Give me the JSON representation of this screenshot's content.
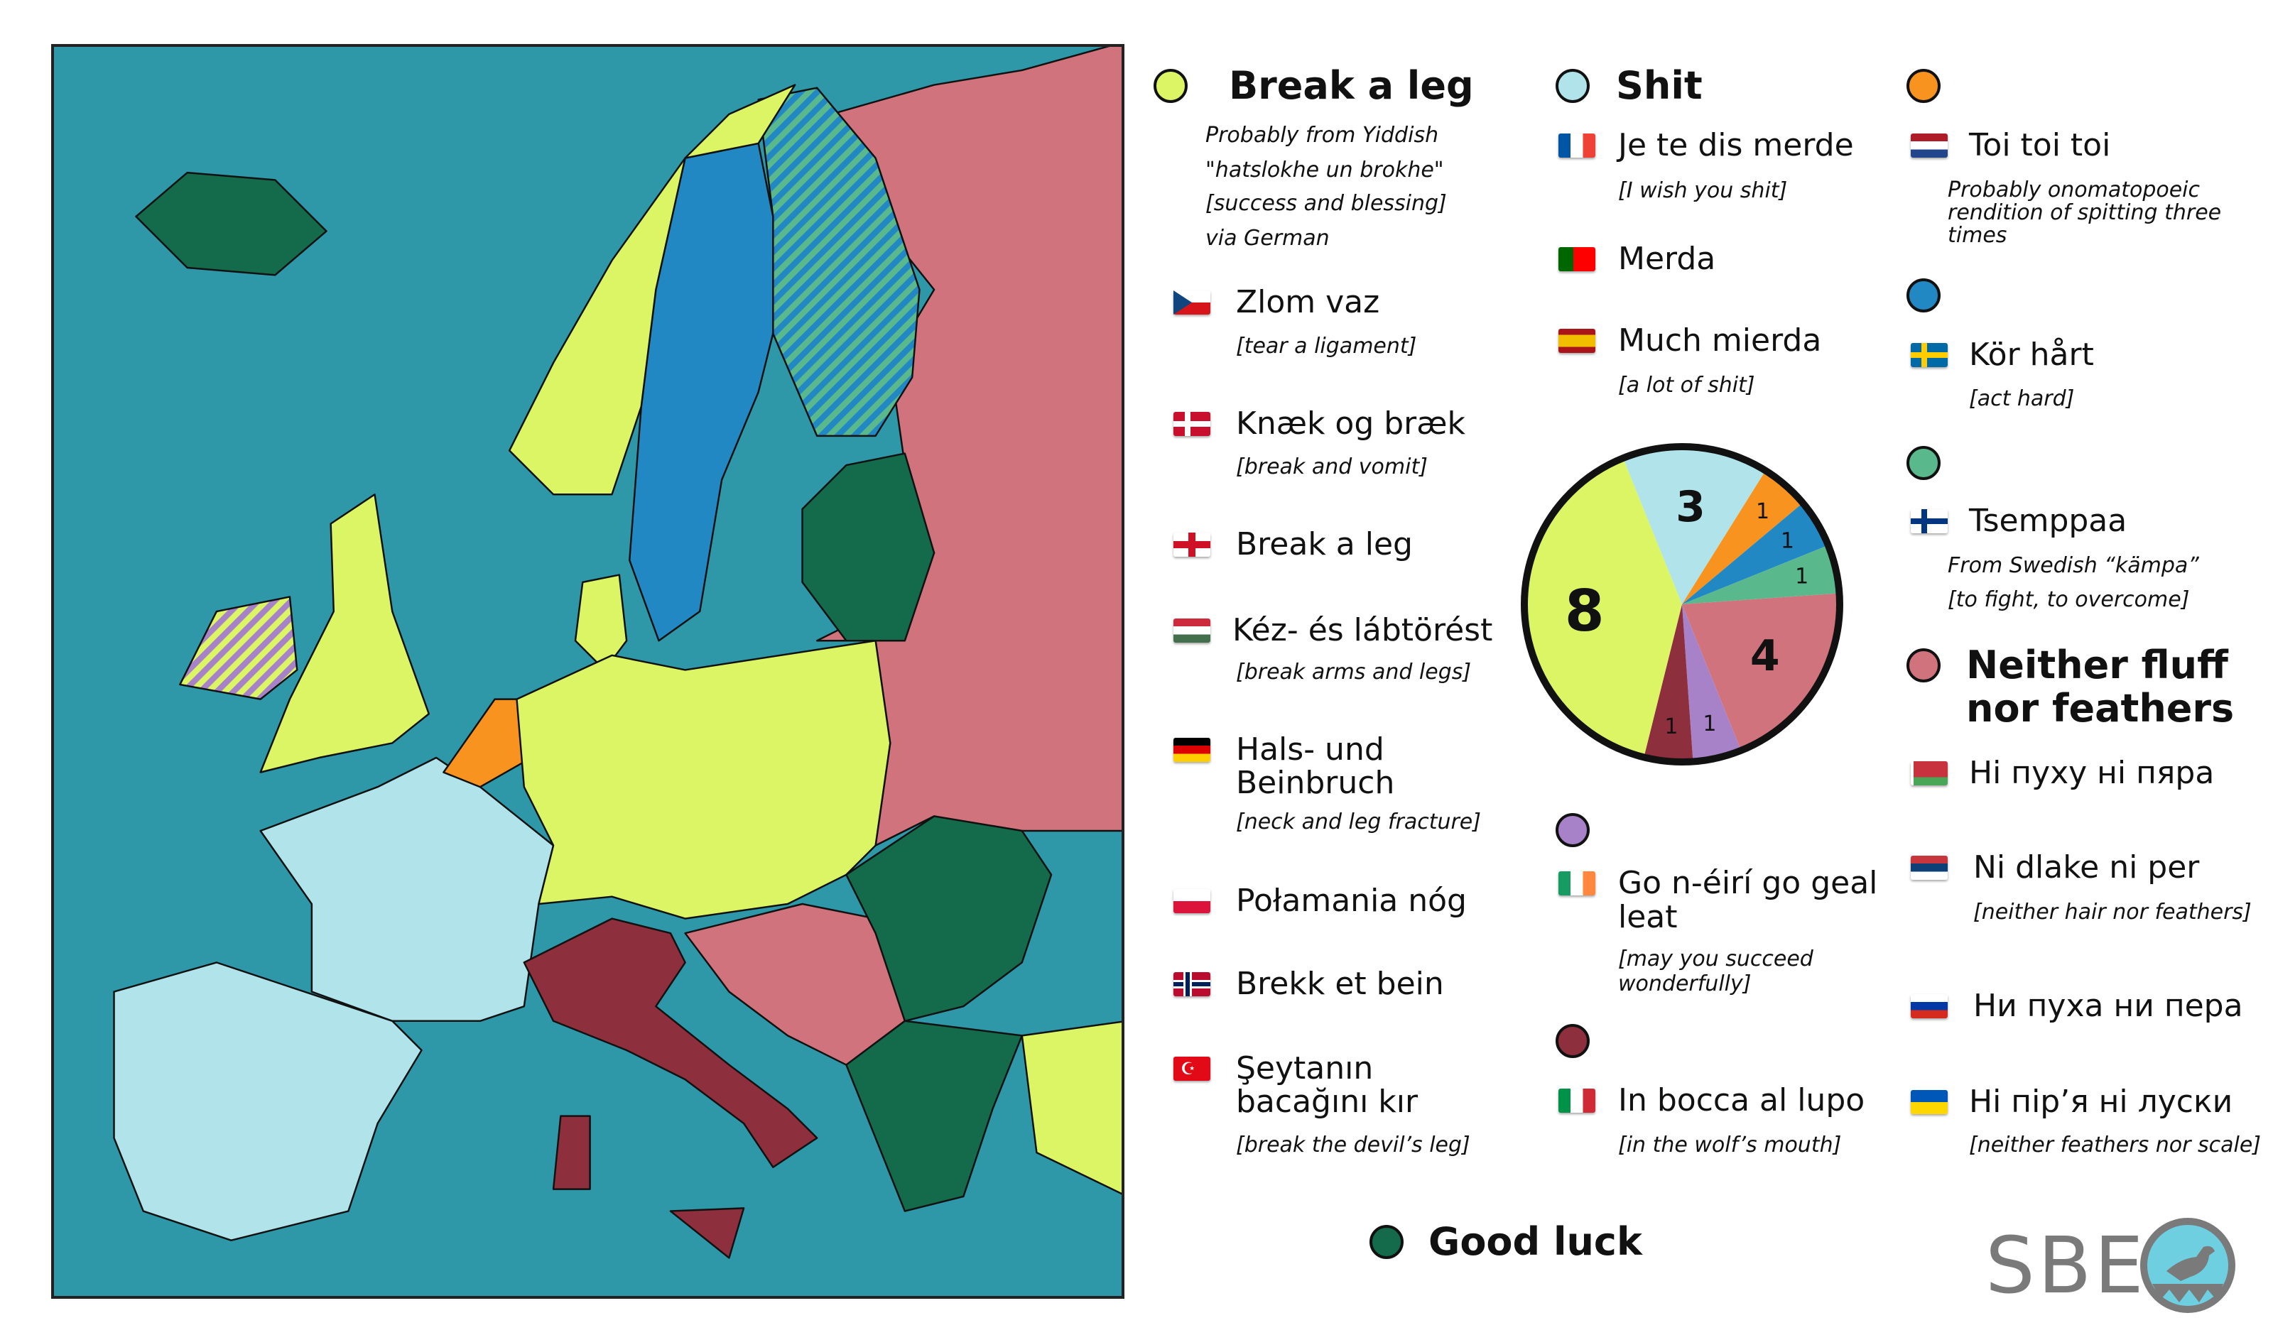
{
  "colors": {
    "sea": "#2f98a8",
    "break_a_leg": "#dcf564",
    "shit": "#b0e4ea",
    "toi_toi_toi": "#f7931e",
    "kor_hart": "#2288c4",
    "tsemppaa": "#5ab98c",
    "neither_fluff": "#d0737c",
    "go_neiri": "#a882c8",
    "in_bocca": "#8e2f3d",
    "good_luck": "#136b4b"
  },
  "groups": {
    "break_a_leg": {
      "title": "Break a leg",
      "note": [
        "Probably from Yiddish",
        "\"hatslokhe un brokhe\"",
        "[success and blessing]",
        "via German"
      ],
      "items": [
        {
          "flag": "czech-flag",
          "name": "Zlom vaz",
          "sub": "[tear a ligament]"
        },
        {
          "flag": "denmark-flag",
          "name": "Knæk og bræk",
          "sub": "[break and vomit]"
        },
        {
          "flag": "england-flag",
          "name": "Break a leg"
        },
        {
          "flag": "hungary-flag",
          "name": "Kéz- és lábtörést",
          "sub": "[break arms and legs]"
        },
        {
          "flag": "germany-flag",
          "name": [
            "Hals- und",
            "Beinbruch"
          ],
          "sub": "[neck and leg fracture]"
        },
        {
          "flag": "poland-flag",
          "name": "Połamania nóg"
        },
        {
          "flag": "norway-flag",
          "name": "Brekk et bein"
        },
        {
          "flag": "turkey-flag",
          "name": [
            "Şeytanın",
            "bacağını kır"
          ],
          "sub": "[break the devil’s leg]"
        }
      ]
    },
    "shit": {
      "title": "Shit",
      "items": [
        {
          "flag": "france-flag",
          "name": "Je te dis merde",
          "sub": "[I wish you shit]"
        },
        {
          "flag": "portugal-flag",
          "name": "Merda"
        },
        {
          "flag": "spain-flag",
          "name": "Much mierda",
          "sub": "[a lot of shit]"
        }
      ]
    },
    "go_neiri": {
      "items": [
        {
          "flag": "ireland-flag",
          "name": [
            "Go n-éirí go geal",
            "leat"
          ],
          "sub": [
            "[may you succeed",
            "wonderfully]"
          ]
        }
      ]
    },
    "in_bocca": {
      "items": [
        {
          "flag": "italy-flag",
          "name": "In bocca al lupo",
          "sub": "[in the wolf’s mouth]"
        }
      ]
    },
    "good_luck": {
      "title": "Good luck"
    },
    "toi_toi_toi": {
      "items": [
        {
          "flag": "netherlands-flag",
          "name": "Toi toi toi",
          "sub": [
            "Probably onomatopoeic",
            "rendition of spitting three",
            "times"
          ]
        }
      ]
    },
    "kor_hart": {
      "items": [
        {
          "flag": "sweden-flag",
          "name": "Kör hårt",
          "sub": "[act hard]"
        }
      ]
    },
    "tsemppaa": {
      "items": [
        {
          "flag": "finland-flag",
          "name": "Tsemppaa",
          "sub": [
            "From Swedish “kämpa”",
            "[to fight, to overcome]"
          ]
        }
      ]
    },
    "neither_fluff": {
      "title": [
        "Neither fluff",
        "nor feathers"
      ],
      "items": [
        {
          "flag": "belarus-flag",
          "name": "Ні пуху ні пяра"
        },
        {
          "flag": "serbia-flag",
          "name": "Ni dlake ni per",
          "sub": "[neither hair nor feathers]"
        },
        {
          "flag": "russia-flag",
          "name": "Ни пуха ни пера"
        },
        {
          "flag": "ukraine-flag",
          "name": "Ні пір’я ні луски",
          "sub": "[neither feathers nor scale]"
        }
      ]
    }
  },
  "chart_data": {
    "type": "pie",
    "slices": [
      {
        "group": "Shit",
        "value": 3,
        "color": "#b0e4ea"
      },
      {
        "group": "Toi toi toi",
        "value": 1,
        "color": "#f7931e"
      },
      {
        "group": "Kör hårt",
        "value": 1,
        "color": "#2288c4"
      },
      {
        "group": "Tsemppaa",
        "value": 1,
        "color": "#5ab98c"
      },
      {
        "group": "Neither fluff nor feathers",
        "value": 4,
        "color": "#d0737c"
      },
      {
        "group": "Go n-éirí go geal leat",
        "value": 1,
        "color": "#a882c8"
      },
      {
        "group": "In bocca al lupo",
        "value": 1,
        "color": "#8e2f3d"
      },
      {
        "group": "Break a leg",
        "value": 8,
        "color": "#dcf564"
      }
    ]
  },
  "logo": {
    "text": "SBE"
  }
}
